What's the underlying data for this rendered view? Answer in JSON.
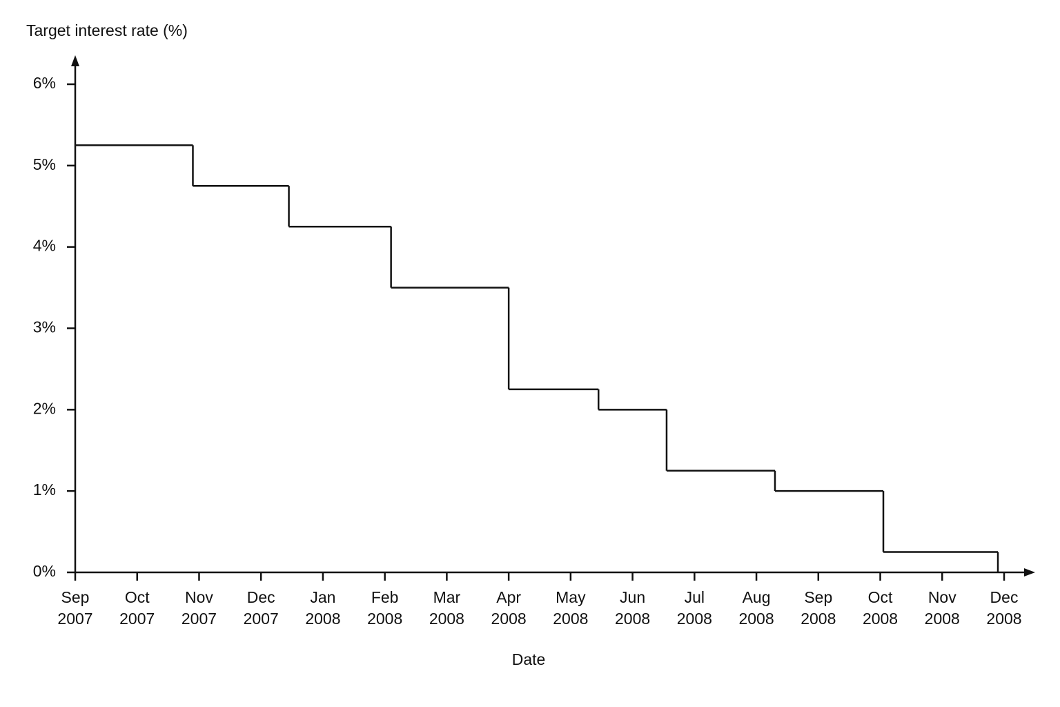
{
  "chart_data": {
    "type": "step",
    "y_label": "Target interest rate (%)",
    "x_label": "Date",
    "x": [
      0,
      1.9,
      3.45,
      5.1,
      7.0,
      8.45,
      9.55,
      11.3,
      13.05,
      14.9
    ],
    "values": [
      5.25,
      4.75,
      4.25,
      3.5,
      2.25,
      2,
      1.25,
      1,
      0.25,
      0
    ],
    "color": "#111111",
    "xlim": [
      0,
      15
    ],
    "xticks": [
      {
        "value": 0,
        "label": "Sep 2007"
      },
      {
        "value": 1,
        "label": "Oct 2007"
      },
      {
        "value": 2,
        "label": "Nov 2007"
      },
      {
        "value": 3,
        "label": "Dec 2007"
      },
      {
        "value": 4,
        "label": "Jan 2008"
      },
      {
        "value": 5,
        "label": "Feb 2008"
      },
      {
        "value": 6,
        "label": "Mar 2008"
      },
      {
        "value": 7,
        "label": "Apr 2008"
      },
      {
        "value": 8,
        "label": "May 2008"
      },
      {
        "value": 9,
        "label": "Jun 2008"
      },
      {
        "value": 10,
        "label": "Jul 2008"
      },
      {
        "value": 11,
        "label": "Aug 2008"
      },
      {
        "value": 12,
        "label": "Sep 2008"
      },
      {
        "value": 13,
        "label": "Oct 2008"
      },
      {
        "value": 14,
        "label": "Nov 2008"
      },
      {
        "value": 15,
        "label": "Dec 2008"
      }
    ],
    "ylim": [
      0,
      6
    ],
    "yticks": [
      {
        "value": 0,
        "label": "0%"
      },
      {
        "value": 1,
        "label": "1%"
      },
      {
        "value": 2,
        "label": "2%"
      },
      {
        "value": 3,
        "label": "3%"
      },
      {
        "value": 4,
        "label": "4%"
      },
      {
        "value": 5,
        "label": "5%"
      },
      {
        "value": 6,
        "label": "6%"
      }
    ],
    "grid": false
  }
}
